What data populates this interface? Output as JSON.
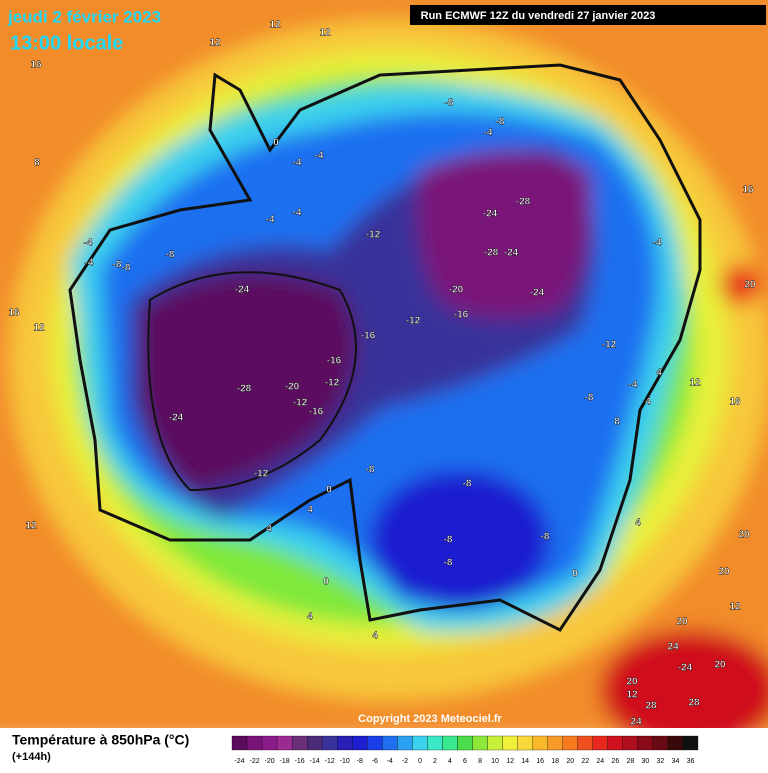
{
  "header": {
    "date": "jeudi 2 février 2023",
    "time": "13:00 locale",
    "run": "Run ECMWF 12Z du vendredi 27 janvier 2023"
  },
  "map": {
    "labels": [
      12,
      12,
      12,
      16,
      8,
      16,
      12,
      12,
      0,
      -4,
      -4,
      -4,
      -4,
      -4,
      -4,
      -8,
      -8,
      -8,
      -12,
      -24,
      -28,
      -24,
      -28,
      -24,
      -20,
      -24,
      -12,
      -16,
      -16,
      -16,
      -12,
      -20,
      -28,
      -24,
      -12,
      -16,
      -12,
      0,
      4,
      4,
      -8,
      -8,
      -8,
      -8,
      -8,
      0,
      0,
      4,
      4,
      -8,
      -12,
      -4,
      -4,
      4,
      12,
      16,
      16,
      20,
      4,
      8,
      4,
      20,
      20,
      12,
      20,
      24,
      -24,
      20,
      20,
      12,
      28,
      28,
      24,
      -8,
      -4,
      -8
    ]
  },
  "footer": {
    "title": "Température à 850hPa (°C)",
    "lead": "(+144h)",
    "copyright": "Copyright 2023 Meteociel.fr"
  },
  "legend": {
    "ticks": [
      -24,
      -22,
      -20,
      -18,
      -16,
      -14,
      -12,
      -10,
      -8,
      -6,
      -4,
      -2,
      0,
      2,
      4,
      6,
      8,
      10,
      12,
      14,
      16,
      18,
      20,
      22,
      24,
      26,
      28,
      30,
      32,
      34,
      36
    ],
    "colors": [
      "#5c0b5e",
      "#7a1379",
      "#8b1a8a",
      "#9b2a93",
      "#6b2f7a",
      "#4b2a7a",
      "#38329a",
      "#2a1fb5",
      "#1f1fd0",
      "#1a3fe8",
      "#1f6ff0",
      "#2aa0f0",
      "#3ad0ee",
      "#3ae8c8",
      "#3ae890",
      "#4cdc4c",
      "#8ee83a",
      "#c8f03a",
      "#f0f03a",
      "#f8d83a",
      "#f8b82a",
      "#f89a2a",
      "#f87a1f",
      "#f0501f",
      "#e8281f",
      "#d00f1f",
      "#b00f1f",
      "#8a0a1a",
      "#6a0a14",
      "#3a0a0a",
      "#101010"
    ]
  }
}
